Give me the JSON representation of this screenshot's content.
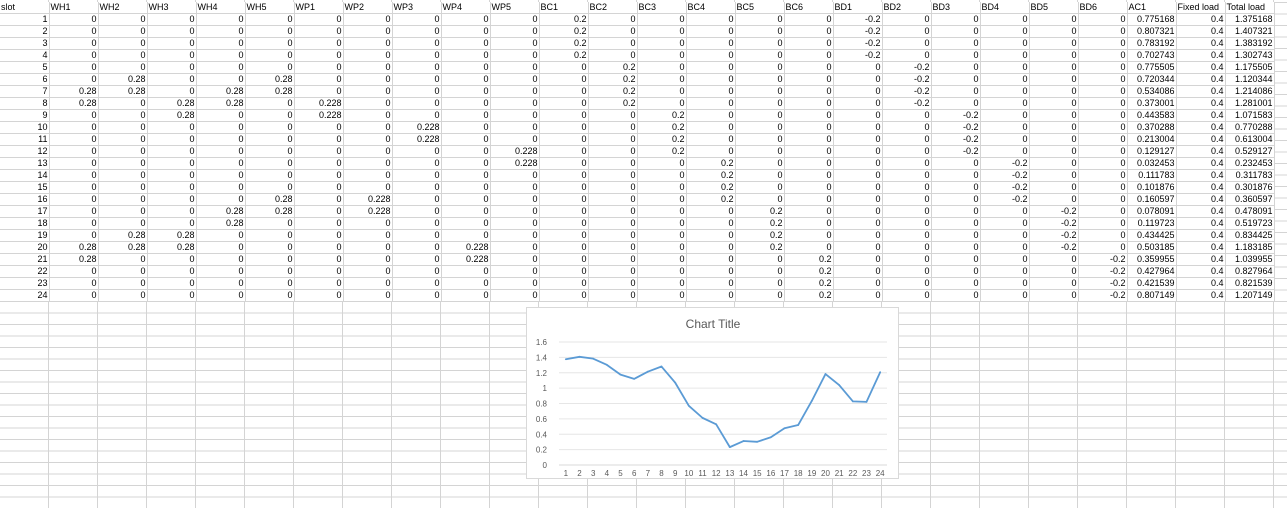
{
  "sheet": {
    "headers": [
      "slot",
      "WH1",
      "WH2",
      "WH3",
      "WH4",
      "WH5",
      "WP1",
      "WP2",
      "WP3",
      "WP4",
      "WP5",
      "BC1",
      "BC2",
      "BC3",
      "BC4",
      "BC5",
      "BC6",
      "BD1",
      "BD2",
      "BD3",
      "BD4",
      "BD5",
      "BD6",
      "AC1",
      "Fixed load",
      "Total load"
    ],
    "rows": [
      [
        "1",
        "0",
        "0",
        "0",
        "0",
        "0",
        "0",
        "0",
        "0",
        "0",
        "0",
        "0.2",
        "0",
        "0",
        "0",
        "0",
        "0",
        "-0.2",
        "0",
        "0",
        "0",
        "0",
        "0",
        "0.775168",
        "0.4",
        "1.375168"
      ],
      [
        "2",
        "0",
        "0",
        "0",
        "0",
        "0",
        "0",
        "0",
        "0",
        "0",
        "0",
        "0.2",
        "0",
        "0",
        "0",
        "0",
        "0",
        "-0.2",
        "0",
        "0",
        "0",
        "0",
        "0",
        "0.807321",
        "0.4",
        "1.407321"
      ],
      [
        "3",
        "0",
        "0",
        "0",
        "0",
        "0",
        "0",
        "0",
        "0",
        "0",
        "0",
        "0.2",
        "0",
        "0",
        "0",
        "0",
        "0",
        "-0.2",
        "0",
        "0",
        "0",
        "0",
        "0",
        "0.783192",
        "0.4",
        "1.383192"
      ],
      [
        "4",
        "0",
        "0",
        "0",
        "0",
        "0",
        "0",
        "0",
        "0",
        "0",
        "0",
        "0.2",
        "0",
        "0",
        "0",
        "0",
        "0",
        "-0.2",
        "0",
        "0",
        "0",
        "0",
        "0",
        "0.702743",
        "0.4",
        "1.302743"
      ],
      [
        "5",
        "0",
        "0",
        "0",
        "0",
        "0",
        "0",
        "0",
        "0",
        "0",
        "0",
        "0",
        "0.2",
        "0",
        "0",
        "0",
        "0",
        "0",
        "-0.2",
        "0",
        "0",
        "0",
        "0",
        "0.775505",
        "0.4",
        "1.175505"
      ],
      [
        "6",
        "0",
        "0.28",
        "0",
        "0",
        "0.28",
        "0",
        "0",
        "0",
        "0",
        "0",
        "0",
        "0.2",
        "0",
        "0",
        "0",
        "0",
        "0",
        "-0.2",
        "0",
        "0",
        "0",
        "0",
        "0.720344",
        "0.4",
        "1.120344"
      ],
      [
        "7",
        "0.28",
        "0.28",
        "0",
        "0.28",
        "0.28",
        "0",
        "0",
        "0",
        "0",
        "0",
        "0",
        "0.2",
        "0",
        "0",
        "0",
        "0",
        "0",
        "-0.2",
        "0",
        "0",
        "0",
        "0",
        "0.534086",
        "0.4",
        "1.214086"
      ],
      [
        "8",
        "0.28",
        "0",
        "0.28",
        "0.28",
        "0",
        "0.228",
        "0",
        "0",
        "0",
        "0",
        "0",
        "0.2",
        "0",
        "0",
        "0",
        "0",
        "0",
        "-0.2",
        "0",
        "0",
        "0",
        "0",
        "0.373001",
        "0.4",
        "1.281001"
      ],
      [
        "9",
        "0",
        "0",
        "0.28",
        "0",
        "0",
        "0.228",
        "0",
        "0",
        "0",
        "0",
        "0",
        "0",
        "0.2",
        "0",
        "0",
        "0",
        "0",
        "0",
        "-0.2",
        "0",
        "0",
        "0",
        "0.443583",
        "0.4",
        "1.071583"
      ],
      [
        "10",
        "0",
        "0",
        "0",
        "0",
        "0",
        "0",
        "0",
        "0.228",
        "0",
        "0",
        "0",
        "0",
        "0.2",
        "0",
        "0",
        "0",
        "0",
        "0",
        "-0.2",
        "0",
        "0",
        "0",
        "0.370288",
        "0.4",
        "0.770288"
      ],
      [
        "11",
        "0",
        "0",
        "0",
        "0",
        "0",
        "0",
        "0",
        "0.228",
        "0",
        "0",
        "0",
        "0",
        "0.2",
        "0",
        "0",
        "0",
        "0",
        "0",
        "-0.2",
        "0",
        "0",
        "0",
        "0.213004",
        "0.4",
        "0.613004"
      ],
      [
        "12",
        "0",
        "0",
        "0",
        "0",
        "0",
        "0",
        "0",
        "0",
        "0",
        "0.228",
        "0",
        "0",
        "0.2",
        "0",
        "0",
        "0",
        "0",
        "0",
        "-0.2",
        "0",
        "0",
        "0",
        "0.129127",
        "0.4",
        "0.529127"
      ],
      [
        "13",
        "0",
        "0",
        "0",
        "0",
        "0",
        "0",
        "0",
        "0",
        "0",
        "0.228",
        "0",
        "0",
        "0",
        "0.2",
        "0",
        "0",
        "0",
        "0",
        "0",
        "-0.2",
        "0",
        "0",
        "0.032453",
        "0.4",
        "0.232453"
      ],
      [
        "14",
        "0",
        "0",
        "0",
        "0",
        "0",
        "0",
        "0",
        "0",
        "0",
        "0",
        "0",
        "0",
        "0",
        "0.2",
        "0",
        "0",
        "0",
        "0",
        "0",
        "-0.2",
        "0",
        "0",
        "0.111783",
        "0.4",
        "0.311783"
      ],
      [
        "15",
        "0",
        "0",
        "0",
        "0",
        "0",
        "0",
        "0",
        "0",
        "0",
        "0",
        "0",
        "0",
        "0",
        "0.2",
        "0",
        "0",
        "0",
        "0",
        "0",
        "-0.2",
        "0",
        "0",
        "0.101876",
        "0.4",
        "0.301876"
      ],
      [
        "16",
        "0",
        "0",
        "0",
        "0",
        "0.28",
        "0",
        "0.228",
        "0",
        "0",
        "0",
        "0",
        "0",
        "0",
        "0.2",
        "0",
        "0",
        "0",
        "0",
        "0",
        "-0.2",
        "0",
        "0",
        "0.160597",
        "0.4",
        "0.360597"
      ],
      [
        "17",
        "0",
        "0",
        "0",
        "0.28",
        "0.28",
        "0",
        "0.228",
        "0",
        "0",
        "0",
        "0",
        "0",
        "0",
        "0",
        "0.2",
        "0",
        "0",
        "0",
        "0",
        "0",
        "-0.2",
        "0",
        "0.078091",
        "0.4",
        "0.478091"
      ],
      [
        "18",
        "0",
        "0",
        "0",
        "0.28",
        "0",
        "0",
        "0",
        "0",
        "0",
        "0",
        "0",
        "0",
        "0",
        "0",
        "0.2",
        "0",
        "0",
        "0",
        "0",
        "0",
        "-0.2",
        "0",
        "0.119723",
        "0.4",
        "0.519723"
      ],
      [
        "19",
        "0",
        "0.28",
        "0.28",
        "0",
        "0",
        "0",
        "0",
        "0",
        "0",
        "0",
        "0",
        "0",
        "0",
        "0",
        "0.2",
        "0",
        "0",
        "0",
        "0",
        "0",
        "-0.2",
        "0",
        "0.434425",
        "0.4",
        "0.834425"
      ],
      [
        "20",
        "0.28",
        "0.28",
        "0.28",
        "0",
        "0",
        "0",
        "0",
        "0",
        "0.228",
        "0",
        "0",
        "0",
        "0",
        "0",
        "0.2",
        "0",
        "0",
        "0",
        "0",
        "0",
        "-0.2",
        "0",
        "0.503185",
        "0.4",
        "1.183185"
      ],
      [
        "21",
        "0.28",
        "0",
        "0",
        "0",
        "0",
        "0",
        "0",
        "0",
        "0.228",
        "0",
        "0",
        "0",
        "0",
        "0",
        "0",
        "0.2",
        "0",
        "0",
        "0",
        "0",
        "0",
        "-0.2",
        "0.359955",
        "0.4",
        "1.039955"
      ],
      [
        "22",
        "0",
        "0",
        "0",
        "0",
        "0",
        "0",
        "0",
        "0",
        "0",
        "0",
        "0",
        "0",
        "0",
        "0",
        "0",
        "0.2",
        "0",
        "0",
        "0",
        "0",
        "0",
        "-0.2",
        "0.427964",
        "0.4",
        "0.827964"
      ],
      [
        "23",
        "0",
        "0",
        "0",
        "0",
        "0",
        "0",
        "0",
        "0",
        "0",
        "0",
        "0",
        "0",
        "0",
        "0",
        "0",
        "0.2",
        "0",
        "0",
        "0",
        "0",
        "0",
        "-0.2",
        "0.421539",
        "0.4",
        "0.821539"
      ],
      [
        "24",
        "0",
        "0",
        "0",
        "0",
        "0",
        "0",
        "0",
        "0",
        "0",
        "0",
        "0",
        "0",
        "0",
        "0",
        "0",
        "0.2",
        "0",
        "0",
        "0",
        "0",
        "0",
        "-0.2",
        "0.807149",
        "0.4",
        "1.207149"
      ]
    ]
  },
  "colors": {
    "gridline": "#d4d4d4",
    "series": "#5b9bd5",
    "chart_text": "#595959",
    "axis": "#d9d9d9"
  },
  "chart_data": {
    "type": "line",
    "title": "Chart Title",
    "xlabel": "",
    "ylabel": "",
    "categories": [
      "1",
      "2",
      "3",
      "4",
      "5",
      "6",
      "7",
      "8",
      "9",
      "10",
      "11",
      "12",
      "13",
      "14",
      "15",
      "16",
      "17",
      "18",
      "19",
      "20",
      "21",
      "22",
      "23",
      "24"
    ],
    "series": [
      {
        "values": [
          1.375168,
          1.407321,
          1.383192,
          1.302743,
          1.175505,
          1.120344,
          1.214086,
          1.281001,
          1.071583,
          0.770288,
          0.613004,
          0.529127,
          0.232453,
          0.311783,
          0.301876,
          0.360597,
          0.478091,
          0.519723,
          0.834425,
          1.183185,
          1.039955,
          0.827964,
          0.821539,
          1.207149
        ]
      }
    ],
    "yticks": [
      "0",
      "0.2",
      "0.4",
      "0.6",
      "0.8",
      "1",
      "1.2",
      "1.4",
      "1.6"
    ],
    "ylim": [
      0,
      1.6
    ],
    "grid": true,
    "legend": "none"
  }
}
